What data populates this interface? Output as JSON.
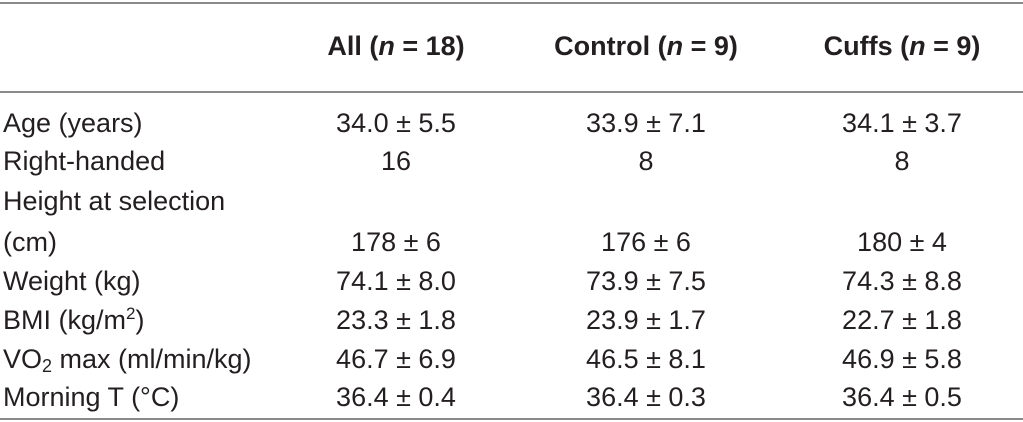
{
  "table": {
    "columns": [
      {
        "label": "All",
        "n_label": "n",
        "n_value": "= 18"
      },
      {
        "label": "Control",
        "n_label": "n",
        "n_value": "= 9"
      },
      {
        "label": "Cuffs",
        "n_label": "n",
        "n_value": "= 9"
      }
    ],
    "rows": [
      {
        "label": "Age (years)",
        "all": "34.0 ± 5.5",
        "control": "33.9 ± 7.1",
        "cuffs": "34.1 ± 3.7"
      },
      {
        "label": "Right-handed",
        "all": "16",
        "control": "8",
        "cuffs": "8"
      },
      {
        "label_line1": "Height at selection",
        "label_line2": "(cm)",
        "all": "178 ± 6",
        "control": "176 ± 6",
        "cuffs": "180 ± 4"
      },
      {
        "label": "Weight (kg)",
        "all": "74.1 ± 8.0",
        "control": "73.9 ± 7.5",
        "cuffs": "74.3 ± 8.8"
      },
      {
        "label_pre": "BMI (kg/m",
        "label_sup": "2",
        "label_post": ")",
        "all": "23.3 ± 1.8",
        "control": "23.9 ± 1.7",
        "cuffs": "22.7 ± 1.8"
      },
      {
        "label_pre": "VO",
        "label_sub": "2",
        "label_post": " max (ml/min/kg)",
        "all": "46.7 ± 6.9",
        "control": "46.5 ± 8.1",
        "cuffs": "46.9 ± 5.8"
      },
      {
        "label": "Morning T (°C)",
        "all": "36.4 ± 0.4",
        "control": "36.4 ± 0.3",
        "cuffs": "36.4 ± 0.5"
      }
    ]
  }
}
